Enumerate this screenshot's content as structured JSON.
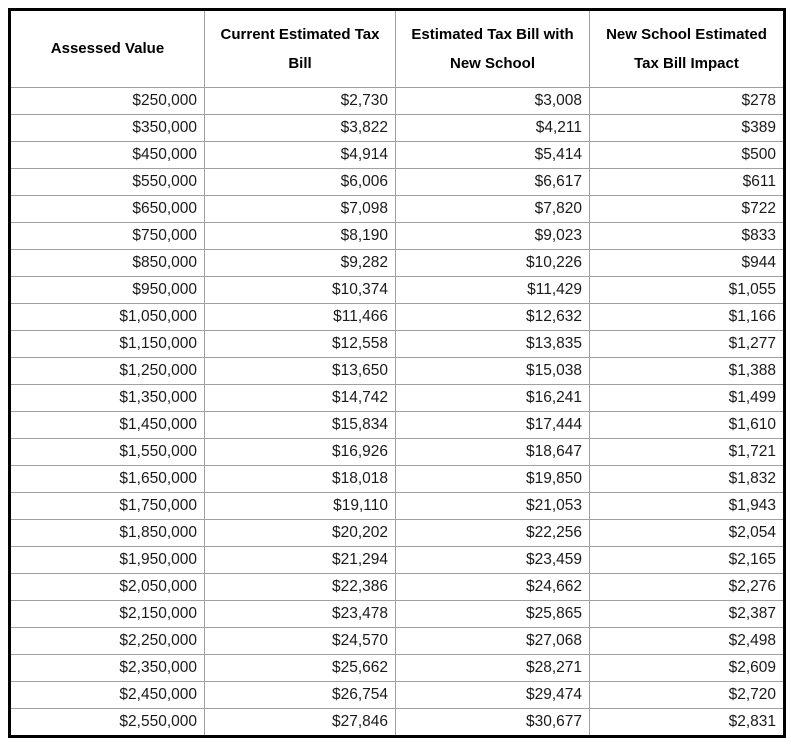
{
  "colors": {
    "outer_border": "#000000",
    "gridline": "#a0a0a0",
    "header_text": "#000000",
    "cell_text": "#1a1a1a",
    "background": "#ffffff"
  },
  "chart_data": {
    "type": "table",
    "title": "",
    "columns": [
      "Assessed Value",
      "Current Estimated Tax Bill",
      "Estimated Tax Bill with New School",
      "New School Estimated Tax Bill Impact"
    ],
    "rows": [
      [
        "$250,000",
        "$2,730",
        "$3,008",
        "$278"
      ],
      [
        "$350,000",
        "$3,822",
        "$4,211",
        "$389"
      ],
      [
        "$450,000",
        "$4,914",
        "$5,414",
        "$500"
      ],
      [
        "$550,000",
        "$6,006",
        "$6,617",
        "$611"
      ],
      [
        "$650,000",
        "$7,098",
        "$7,820",
        "$722"
      ],
      [
        "$750,000",
        "$8,190",
        "$9,023",
        "$833"
      ],
      [
        "$850,000",
        "$9,282",
        "$10,226",
        "$944"
      ],
      [
        "$950,000",
        "$10,374",
        "$11,429",
        "$1,055"
      ],
      [
        "$1,050,000",
        "$11,466",
        "$12,632",
        "$1,166"
      ],
      [
        "$1,150,000",
        "$12,558",
        "$13,835",
        "$1,277"
      ],
      [
        "$1,250,000",
        "$13,650",
        "$15,038",
        "$1,388"
      ],
      [
        "$1,350,000",
        "$14,742",
        "$16,241",
        "$1,499"
      ],
      [
        "$1,450,000",
        "$15,834",
        "$17,444",
        "$1,610"
      ],
      [
        "$1,550,000",
        "$16,926",
        "$18,647",
        "$1,721"
      ],
      [
        "$1,650,000",
        "$18,018",
        "$19,850",
        "$1,832"
      ],
      [
        "$1,750,000",
        "$19,110",
        "$21,053",
        "$1,943"
      ],
      [
        "$1,850,000",
        "$20,202",
        "$22,256",
        "$2,054"
      ],
      [
        "$1,950,000",
        "$21,294",
        "$23,459",
        "$2,165"
      ],
      [
        "$2,050,000",
        "$22,386",
        "$24,662",
        "$2,276"
      ],
      [
        "$2,150,000",
        "$23,478",
        "$25,865",
        "$2,387"
      ],
      [
        "$2,250,000",
        "$24,570",
        "$27,068",
        "$2,498"
      ],
      [
        "$2,350,000",
        "$25,662",
        "$28,271",
        "$2,609"
      ],
      [
        "$2,450,000",
        "$26,754",
        "$29,474",
        "$2,720"
      ],
      [
        "$2,550,000",
        "$27,846",
        "$30,677",
        "$2,831"
      ]
    ],
    "numeric": {
      "assessed_value": [
        250000,
        350000,
        450000,
        550000,
        650000,
        750000,
        850000,
        950000,
        1050000,
        1150000,
        1250000,
        1350000,
        1450000,
        1550000,
        1650000,
        1750000,
        1850000,
        1950000,
        2050000,
        2150000,
        2250000,
        2350000,
        2450000,
        2550000
      ],
      "current_estimated_tax_bill": [
        2730,
        3822,
        4914,
        6006,
        7098,
        8190,
        9282,
        10374,
        11466,
        12558,
        13650,
        14742,
        15834,
        16926,
        18018,
        19110,
        20202,
        21294,
        22386,
        23478,
        24570,
        25662,
        26754,
        27846
      ],
      "estimated_tax_bill_with_new_school": [
        3008,
        4211,
        5414,
        6617,
        7820,
        9023,
        10226,
        11429,
        12632,
        13835,
        15038,
        16241,
        17444,
        18647,
        19850,
        21053,
        22256,
        23459,
        24662,
        25865,
        27068,
        28271,
        29474,
        30677
      ],
      "new_school_estimated_tax_bill_impact": [
        278,
        389,
        500,
        611,
        722,
        833,
        944,
        1055,
        1166,
        1277,
        1388,
        1499,
        1610,
        1721,
        1832,
        1943,
        2054,
        2165,
        2276,
        2387,
        2498,
        2609,
        2720,
        2831
      ]
    }
  }
}
